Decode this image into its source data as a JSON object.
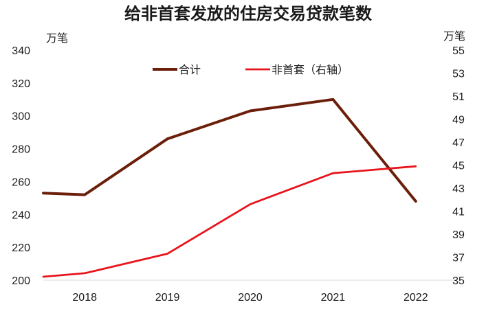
{
  "chart_data": {
    "type": "line",
    "title": "给非首套发放的住房交易贷款笔数",
    "y_left_label": "万笔",
    "y_right_label": "万笔",
    "y_left_lim": [
      200,
      340
    ],
    "y_left_ticks": [
      200,
      220,
      240,
      260,
      280,
      300,
      320,
      340
    ],
    "y_right_lim": [
      35,
      55
    ],
    "y_right_ticks": [
      35,
      37,
      39,
      41,
      43,
      45,
      47,
      49,
      51,
      53,
      55
    ],
    "x_tick_labels": [
      "2018",
      "2019",
      "2020",
      "2021",
      "2022"
    ],
    "x_range": [
      2017.5,
      2022.5
    ],
    "series": [
      {
        "name": "合计",
        "axis": "left",
        "color": "#6b1f0a",
        "x": [
          2017.5,
          2018.0,
          2019.0,
          2020.0,
          2021.0,
          2022.0
        ],
        "values": [
          253,
          252,
          286,
          303,
          310,
          248
        ]
      },
      {
        "name": "非首套（右轴）",
        "axis": "right",
        "color": "#e8141c",
        "x": [
          2017.5,
          2018.0,
          2019.0,
          2020.0,
          2021.0,
          2022.0
        ],
        "values": [
          35.3,
          35.6,
          37.3,
          41.6,
          44.3,
          44.9
        ]
      }
    ],
    "legend_position": "top-center"
  }
}
